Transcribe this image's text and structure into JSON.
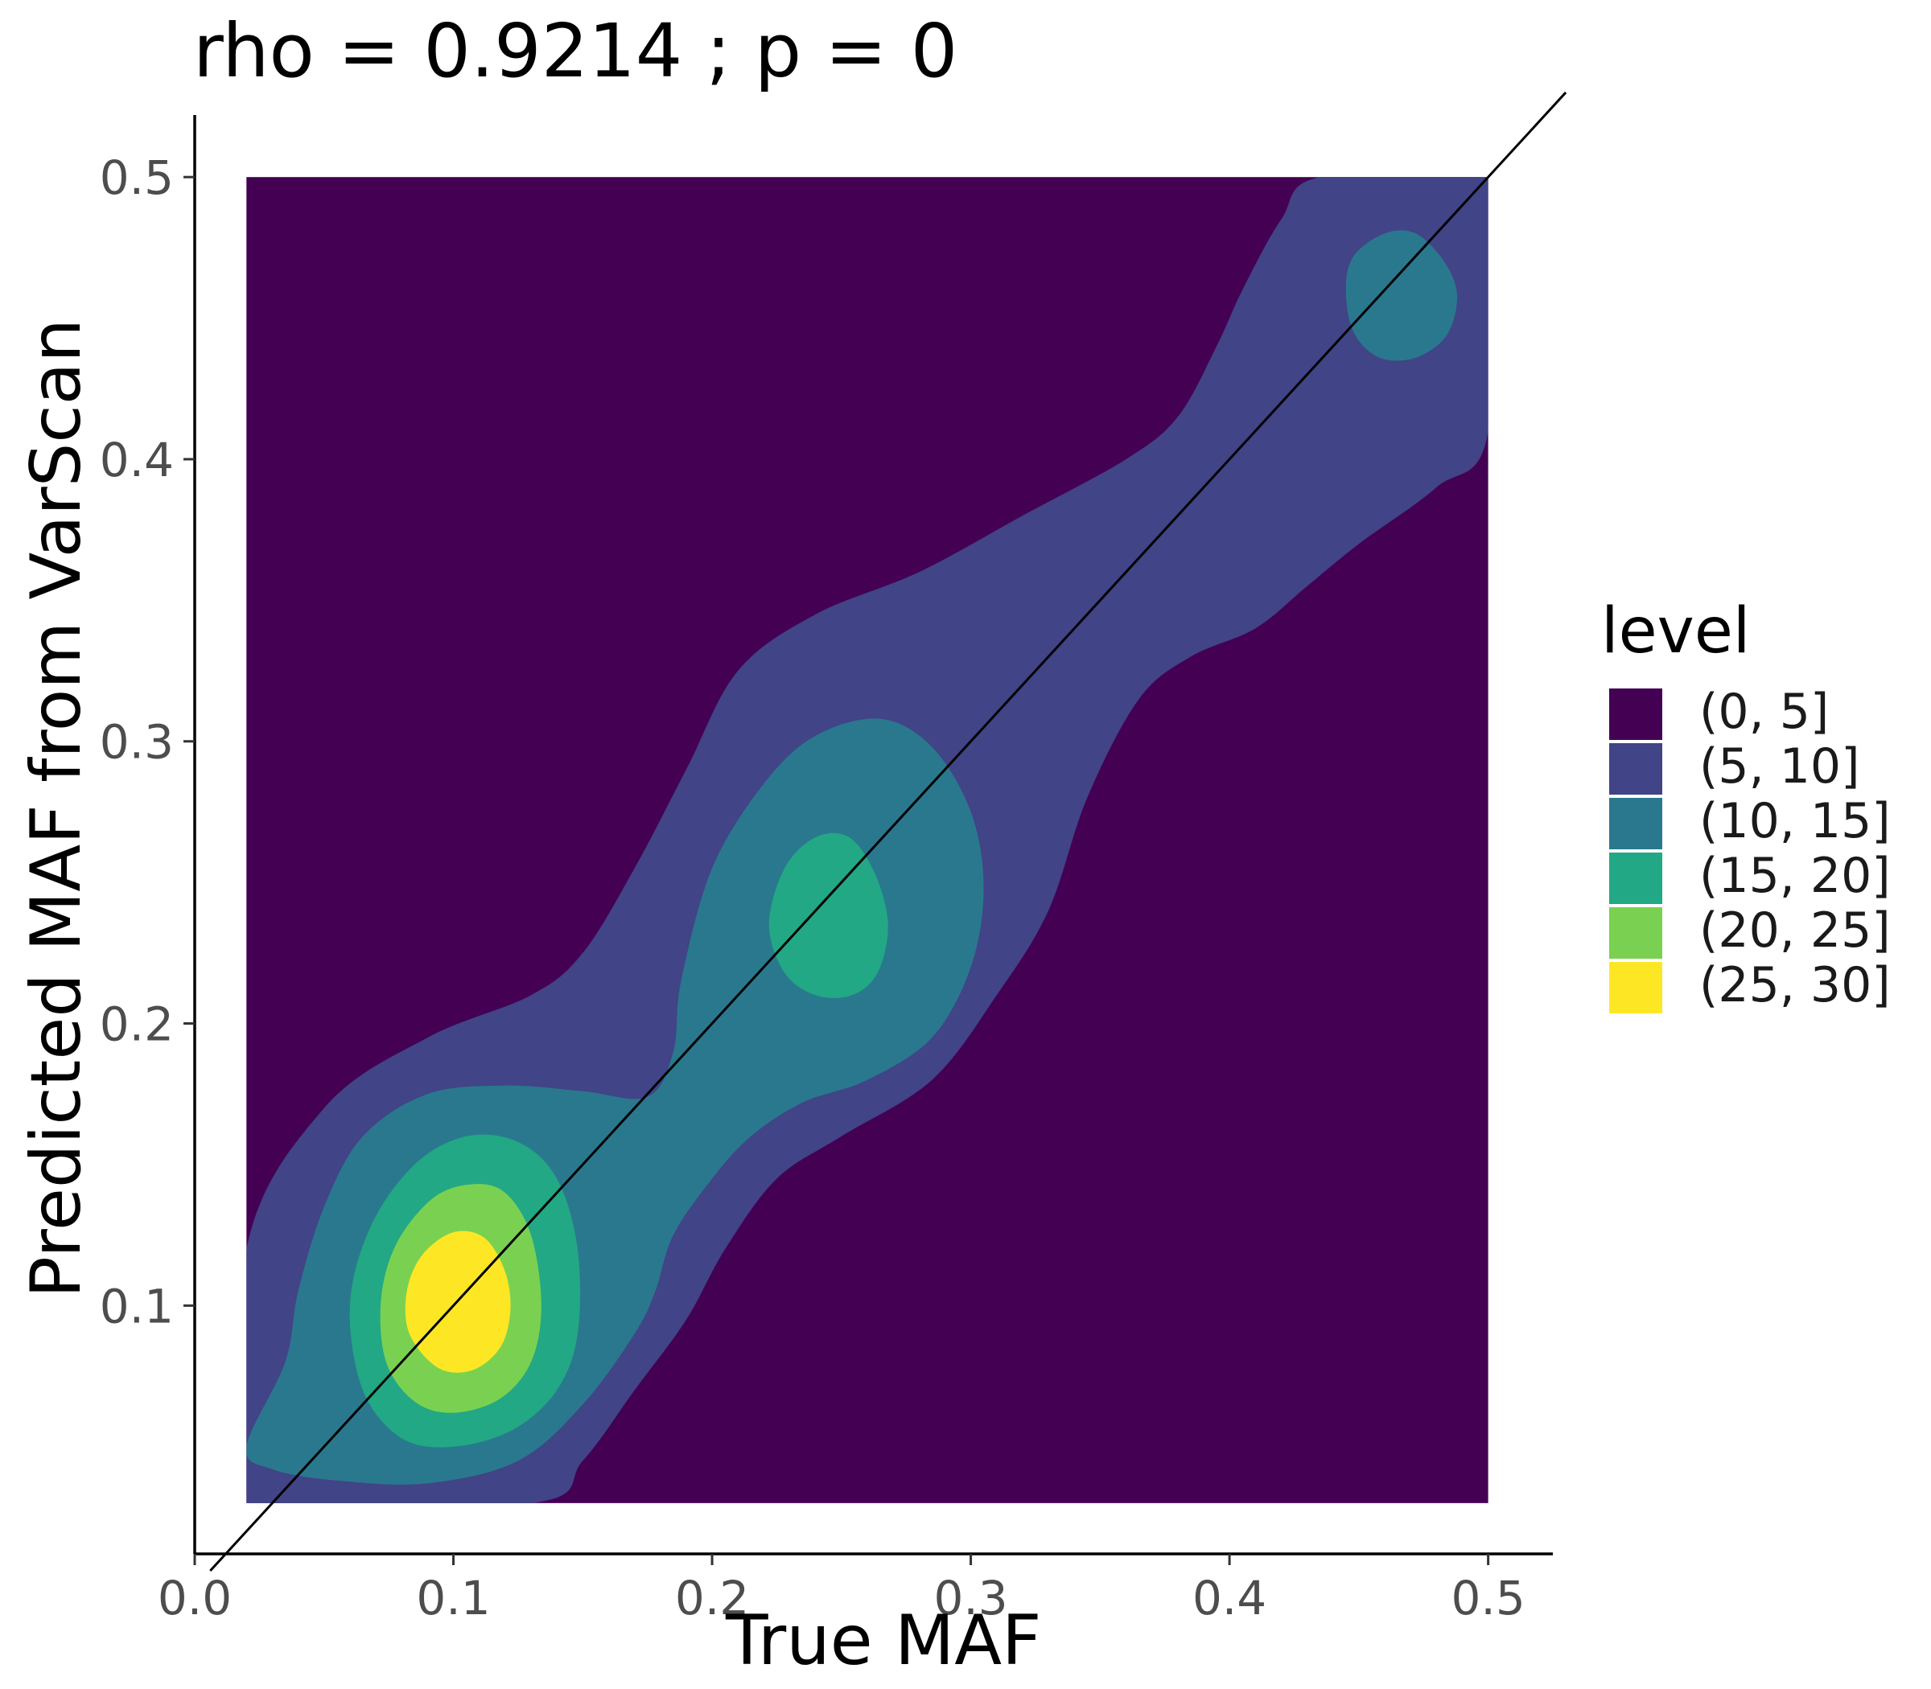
{
  "chart_data": {
    "type": "contour",
    "title": "rho = 0.9214 ; p = 0",
    "xlabel": "True MAF",
    "ylabel": "Predicted MAF from VarScan",
    "xlim": [
      0.0,
      0.525
    ],
    "ylim": [
      0.012,
      0.522
    ],
    "xticks": [
      0.0,
      0.1,
      0.2,
      0.3,
      0.4,
      0.5
    ],
    "yticks": [
      0.1,
      0.2,
      0.3,
      0.4,
      0.5
    ],
    "xtick_labels": [
      "0.0",
      "0.1",
      "0.2",
      "0.3",
      "0.4",
      "0.5"
    ],
    "ytick_labels": [
      "0.1",
      "0.2",
      "0.3",
      "0.4",
      "0.5"
    ],
    "density_region": {
      "x": [
        0.02,
        0.5
      ],
      "y": [
        0.03,
        0.5
      ]
    },
    "reference_line": {
      "slope": 1,
      "intercept": 0
    },
    "grid": false,
    "legend": {
      "title": "level",
      "position": "right",
      "entries": [
        {
          "label": "(0, 5]",
          "color": "#440154"
        },
        {
          "label": "(5, 10]",
          "color": "#414487"
        },
        {
          "label": "(10, 15]",
          "color": "#2A788E"
        },
        {
          "label": "(15, 20]",
          "color": "#22A884"
        },
        {
          "label": "(20, 25]",
          "color": "#7AD151"
        },
        {
          "label": "(25, 30]",
          "color": "#FDE725"
        }
      ]
    },
    "contours": [
      {
        "level": "(5, 10]",
        "color": "#414487",
        "polygon": [
          [
            0.02,
            0.03
          ],
          [
            0.02,
            0.12
          ],
          [
            0.05,
            0.17
          ],
          [
            0.09,
            0.195
          ],
          [
            0.13,
            0.21
          ],
          [
            0.15,
            0.225
          ],
          [
            0.17,
            0.255
          ],
          [
            0.19,
            0.29
          ],
          [
            0.21,
            0.325
          ],
          [
            0.24,
            0.345
          ],
          [
            0.28,
            0.36
          ],
          [
            0.32,
            0.38
          ],
          [
            0.36,
            0.4
          ],
          [
            0.38,
            0.415
          ],
          [
            0.395,
            0.44
          ],
          [
            0.405,
            0.46
          ],
          [
            0.42,
            0.485
          ],
          [
            0.435,
            0.5
          ],
          [
            0.5,
            0.5
          ],
          [
            0.5,
            0.41
          ],
          [
            0.48,
            0.39
          ],
          [
            0.45,
            0.37
          ],
          [
            0.43,
            0.355
          ],
          [
            0.41,
            0.34
          ],
          [
            0.385,
            0.33
          ],
          [
            0.365,
            0.315
          ],
          [
            0.345,
            0.28
          ],
          [
            0.33,
            0.24
          ],
          [
            0.31,
            0.21
          ],
          [
            0.285,
            0.18
          ],
          [
            0.25,
            0.16
          ],
          [
            0.225,
            0.145
          ],
          [
            0.205,
            0.12
          ],
          [
            0.19,
            0.095
          ],
          [
            0.17,
            0.07
          ],
          [
            0.15,
            0.045
          ],
          [
            0.13,
            0.03
          ]
        ]
      },
      {
        "level": "(10, 15]",
        "color": "#2A788E",
        "polygon": [
          [
            0.02,
            0.05
          ],
          [
            0.035,
            0.08
          ],
          [
            0.04,
            0.105
          ],
          [
            0.05,
            0.135
          ],
          [
            0.065,
            0.16
          ],
          [
            0.09,
            0.175
          ],
          [
            0.12,
            0.178
          ],
          [
            0.15,
            0.176
          ],
          [
            0.175,
            0.174
          ],
          [
            0.185,
            0.19
          ],
          [
            0.188,
            0.215
          ],
          [
            0.2,
            0.255
          ],
          [
            0.22,
            0.285
          ],
          [
            0.24,
            0.302
          ],
          [
            0.265,
            0.308
          ],
          [
            0.285,
            0.298
          ],
          [
            0.3,
            0.275
          ],
          [
            0.305,
            0.248
          ],
          [
            0.3,
            0.22
          ],
          [
            0.285,
            0.195
          ],
          [
            0.26,
            0.18
          ],
          [
            0.235,
            0.172
          ],
          [
            0.215,
            0.16
          ],
          [
            0.2,
            0.145
          ],
          [
            0.185,
            0.125
          ],
          [
            0.178,
            0.105
          ],
          [
            0.17,
            0.09
          ],
          [
            0.15,
            0.065
          ],
          [
            0.125,
            0.045
          ],
          [
            0.09,
            0.037
          ],
          [
            0.055,
            0.038
          ],
          [
            0.03,
            0.042
          ]
        ]
      },
      {
        "level": "(10, 15]",
        "color": "#2A788E",
        "polygon": [
          [
            0.445,
            0.46
          ],
          [
            0.448,
            0.472
          ],
          [
            0.46,
            0.48
          ],
          [
            0.472,
            0.48
          ],
          [
            0.483,
            0.47
          ],
          [
            0.488,
            0.458
          ],
          [
            0.484,
            0.444
          ],
          [
            0.472,
            0.436
          ],
          [
            0.458,
            0.436
          ],
          [
            0.448,
            0.445
          ]
        ]
      },
      {
        "level": "(15, 20]",
        "color": "#22A884",
        "polygon": [
          [
            0.065,
            0.07
          ],
          [
            0.06,
            0.1
          ],
          [
            0.068,
            0.128
          ],
          [
            0.085,
            0.15
          ],
          [
            0.105,
            0.16
          ],
          [
            0.125,
            0.158
          ],
          [
            0.14,
            0.145
          ],
          [
            0.148,
            0.12
          ],
          [
            0.148,
            0.09
          ],
          [
            0.14,
            0.07
          ],
          [
            0.123,
            0.056
          ],
          [
            0.1,
            0.05
          ],
          [
            0.08,
            0.053
          ]
        ]
      },
      {
        "level": "(15, 20]",
        "color": "#22A884",
        "polygon": [
          [
            0.222,
            0.235
          ],
          [
            0.228,
            0.255
          ],
          [
            0.24,
            0.266
          ],
          [
            0.253,
            0.266
          ],
          [
            0.263,
            0.253
          ],
          [
            0.268,
            0.235
          ],
          [
            0.264,
            0.218
          ],
          [
            0.254,
            0.21
          ],
          [
            0.24,
            0.21
          ],
          [
            0.228,
            0.218
          ]
        ]
      },
      {
        "level": "(20, 25]",
        "color": "#7AD151",
        "polygon": [
          [
            0.074,
            0.08
          ],
          [
            0.072,
            0.102
          ],
          [
            0.078,
            0.122
          ],
          [
            0.092,
            0.138
          ],
          [
            0.107,
            0.143
          ],
          [
            0.12,
            0.14
          ],
          [
            0.13,
            0.125
          ],
          [
            0.134,
            0.1
          ],
          [
            0.13,
            0.08
          ],
          [
            0.118,
            0.067
          ],
          [
            0.1,
            0.062
          ],
          [
            0.085,
            0.066
          ]
        ]
      },
      {
        "level": "(25, 30]",
        "color": "#FDE725",
        "polygon": [
          [
            0.083,
            0.09
          ],
          [
            0.082,
            0.105
          ],
          [
            0.088,
            0.118
          ],
          [
            0.1,
            0.126
          ],
          [
            0.112,
            0.124
          ],
          [
            0.12,
            0.112
          ],
          [
            0.122,
            0.098
          ],
          [
            0.118,
            0.085
          ],
          [
            0.107,
            0.077
          ],
          [
            0.094,
            0.078
          ]
        ]
      }
    ]
  }
}
